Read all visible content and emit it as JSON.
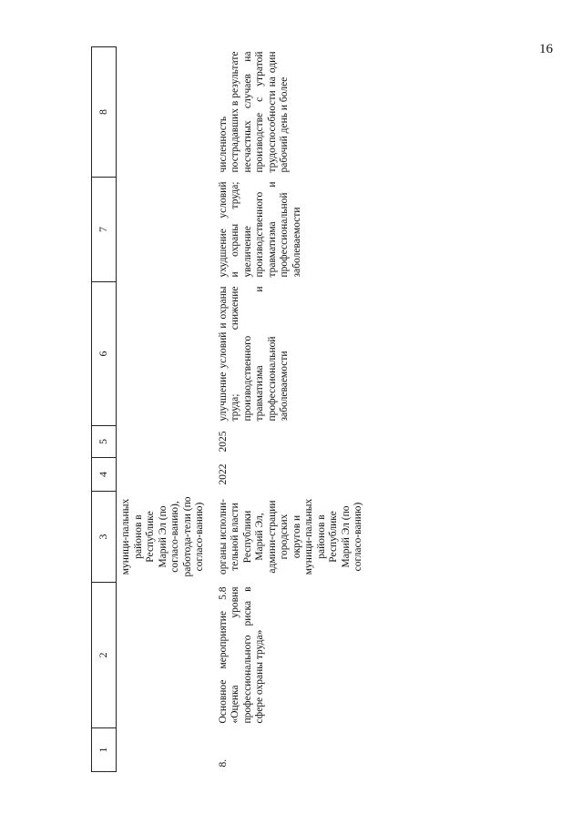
{
  "page_number": "16",
  "table": {
    "header": [
      "1",
      "2",
      "3",
      "4",
      "5",
      "6",
      "7",
      "8"
    ],
    "rows": [
      [
        null,
        null,
        "муници-пальных районов в Республике Марий Эл (по согласо-ванию), работода-тели (по согласо-ванию)",
        null,
        null,
        null,
        null,
        null
      ],
      [
        "8.",
        "Основное мероприятие 5.8 «Оценка уровня профессионального риска в сфере охраны труда»",
        "органы исполни-тельной власти Республики Марий Эл, админи-страции городских округов и муници-пальных районов в Республике Марий Эл (по согласо-ванию)",
        "2022",
        "2025",
        "улучшение условий и охраны труда; снижение производственного травматизма и профессиональной заболеваемости",
        "ухудшение условий и охраны труда; увеличение производственного травматизма и профессиональной заболеваемости",
        "численность пострадавших в результате несчастных случаев на производстве с утратой трудоспособности на один рабочий день и более"
      ]
    ]
  }
}
